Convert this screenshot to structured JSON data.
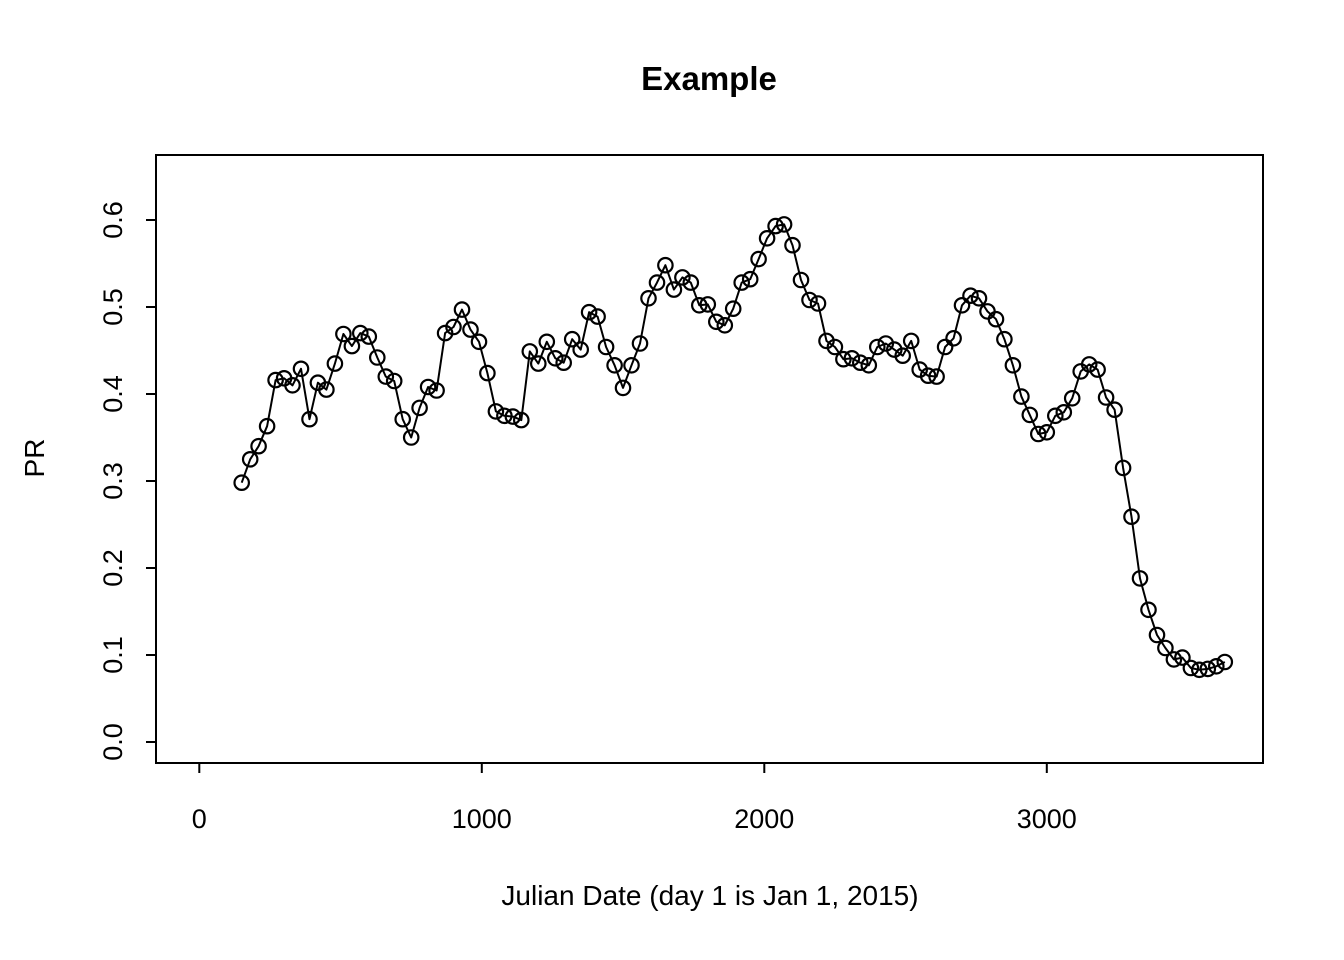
{
  "figure": {
    "title": "Example"
  },
  "chart_data": {
    "type": "line",
    "title": "Example",
    "xlabel": "Julian Date (day 1 is Jan 1, 2015)",
    "ylabel": "PR",
    "marker": "open-circle",
    "line_color": "#000000",
    "marker_color": "#000000",
    "background_color": "#ffffff",
    "grid": false,
    "legend": null,
    "x_ticks": [
      0,
      1000,
      2000,
      3000
    ],
    "y_ticks": [
      "0.0",
      "0.1",
      "0.2",
      "0.3",
      "0.4",
      "0.5",
      "0.6"
    ],
    "xlim": [
      -150,
      3770
    ],
    "ylim": [
      -0.025,
      0.675
    ],
    "x": [
      150,
      180,
      210,
      240,
      270,
      300,
      330,
      360,
      390,
      420,
      450,
      480,
      510,
      540,
      570,
      600,
      630,
      660,
      690,
      720,
      750,
      780,
      810,
      840,
      870,
      900,
      930,
      960,
      990,
      1020,
      1050,
      1080,
      1110,
      1140,
      1170,
      1200,
      1230,
      1260,
      1290,
      1320,
      1350,
      1380,
      1410,
      1440,
      1470,
      1500,
      1530,
      1560,
      1590,
      1620,
      1650,
      1680,
      1710,
      1740,
      1770,
      1800,
      1830,
      1860,
      1890,
      1920,
      1950,
      1980,
      2010,
      2040,
      2070,
      2100,
      2130,
      2160,
      2190,
      2220,
      2250,
      2280,
      2310,
      2340,
      2370,
      2400,
      2430,
      2460,
      2490,
      2520,
      2550,
      2580,
      2610,
      2640,
      2670,
      2700,
      2730,
      2760,
      2790,
      2820,
      2850,
      2880,
      2910,
      2940,
      2970,
      3000,
      3030,
      3060,
      3090,
      3120,
      3150,
      3180,
      3210,
      3240,
      3270,
      3300,
      3330,
      3360,
      3390,
      3420,
      3450,
      3480,
      3510,
      3540,
      3570,
      3600,
      3630
    ],
    "y": [
      0.298,
      0.325,
      0.34,
      0.363,
      0.416,
      0.418,
      0.41,
      0.429,
      0.371,
      0.413,
      0.405,
      0.435,
      0.469,
      0.455,
      0.47,
      0.466,
      0.442,
      0.42,
      0.415,
      0.371,
      0.35,
      0.384,
      0.408,
      0.404,
      0.47,
      0.477,
      0.497,
      0.474,
      0.46,
      0.424,
      0.38,
      0.375,
      0.374,
      0.37,
      0.449,
      0.435,
      0.46,
      0.441,
      0.436,
      0.463,
      0.451,
      0.494,
      0.489,
      0.454,
      0.433,
      0.407,
      0.433,
      0.458,
      0.51,
      0.528,
      0.548,
      0.52,
      0.534,
      0.528,
      0.502,
      0.503,
      0.483,
      0.479,
      0.498,
      0.528,
      0.532,
      0.555,
      0.579,
      0.593,
      0.595,
      0.571,
      0.531,
      0.508,
      0.504,
      0.461,
      0.454,
      0.44,
      0.441,
      0.436,
      0.433,
      0.454,
      0.458,
      0.451,
      0.444,
      0.461,
      0.428,
      0.421,
      0.42,
      0.454,
      0.464,
      0.502,
      0.513,
      0.51,
      0.495,
      0.486,
      0.463,
      0.433,
      0.397,
      0.376,
      0.354,
      0.356,
      0.375,
      0.379,
      0.395,
      0.426,
      0.434,
      0.428,
      0.396,
      0.382,
      0.315,
      0.259,
      0.188,
      0.152,
      0.123,
      0.108,
      0.095,
      0.097,
      0.085,
      0.083,
      0.084,
      0.087,
      0.092
    ]
  }
}
